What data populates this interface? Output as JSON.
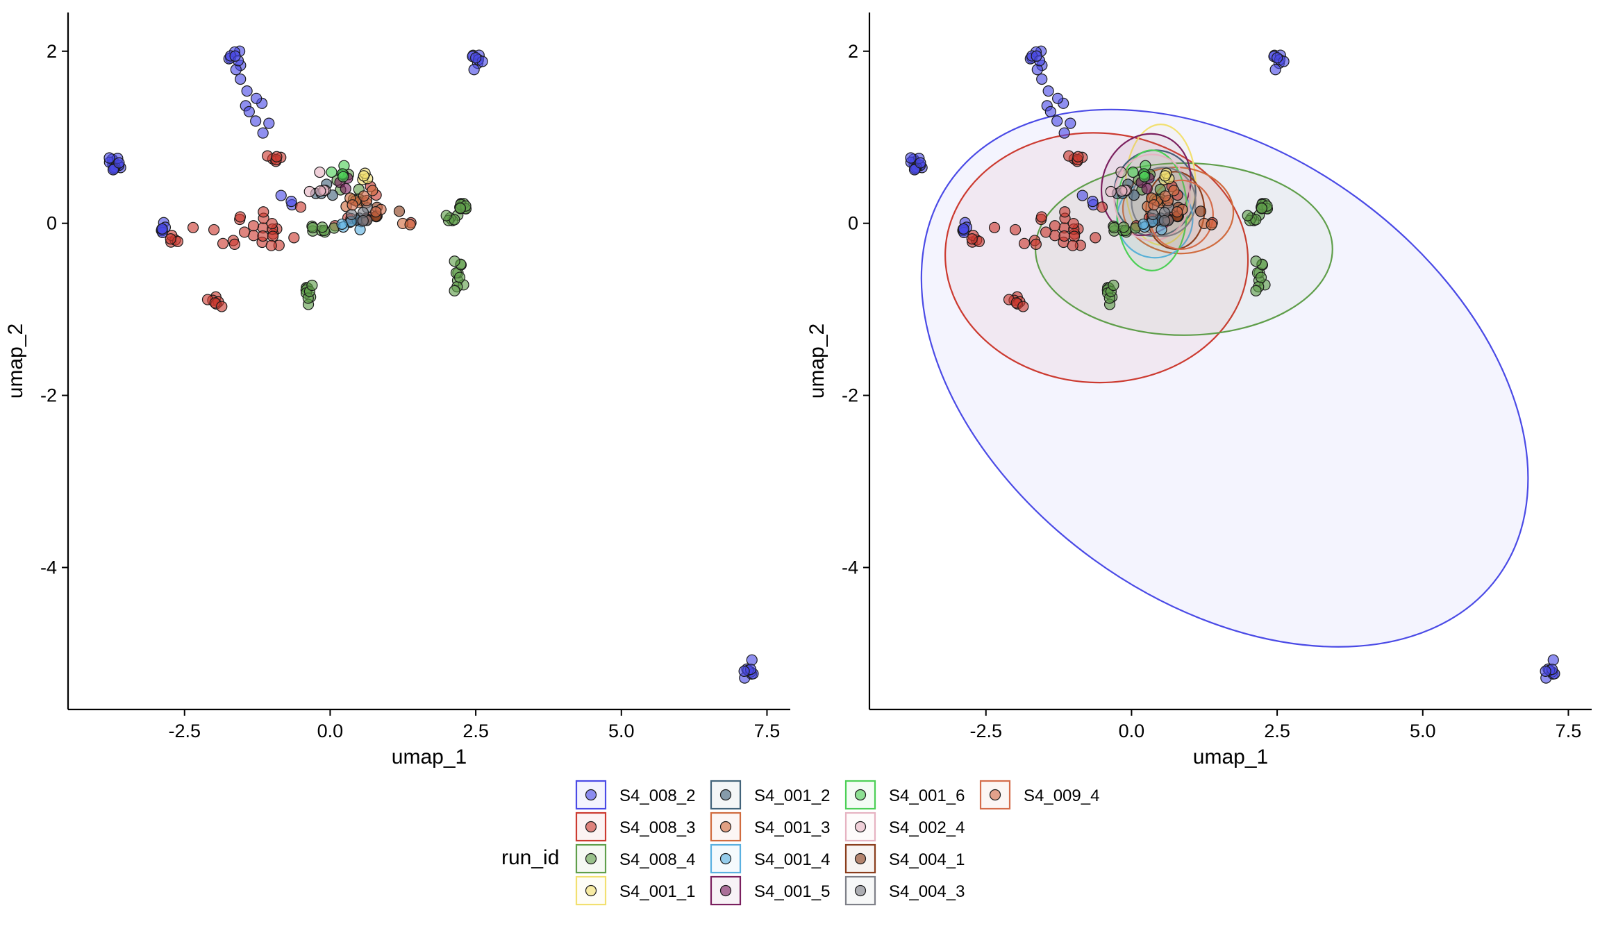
{
  "chart_data": [
    {
      "type": "scatter",
      "xlabel": "umap_1",
      "ylabel": "umap_2",
      "xlim": [
        -4.5,
        7.9
      ],
      "ylim": [
        -5.65,
        2.45
      ],
      "xticks": [
        -2.5,
        0.0,
        2.5,
        5.0,
        7.5
      ],
      "xtick_labels": [
        "-2.5",
        "0.0",
        "2.5",
        "5.0",
        "7.5"
      ],
      "yticks": [
        2,
        0,
        -2,
        -4
      ],
      "ytick_labels": [
        "2",
        "0",
        "-2",
        "-4"
      ],
      "grid": false,
      "ellipses": false
    },
    {
      "type": "scatter",
      "xlabel": "umap_1",
      "ylabel": "umap_2",
      "xlim": [
        -4.5,
        7.9
      ],
      "ylim": [
        -5.65,
        2.45
      ],
      "xticks": [
        -2.5,
        0.0,
        2.5,
        5.0,
        7.5
      ],
      "xtick_labels": [
        "-2.5",
        "0.0",
        "2.5",
        "5.0",
        "7.5"
      ],
      "yticks": [
        2,
        0,
        -2,
        -4
      ],
      "ytick_labels": [
        "2",
        "0",
        "-2",
        "-4"
      ],
      "grid": false,
      "ellipses": true
    }
  ],
  "legend": {
    "title": "run_id",
    "placement": "bottom"
  },
  "series": [
    {
      "name": "S4_008_2",
      "color": "#4a4ae6",
      "clusters": [
        [
          -3.7,
          0.7,
          0.1,
          0.08,
          14
        ],
        [
          -1.6,
          1.9,
          0.1,
          0.15,
          10
        ],
        [
          -1.3,
          1.3,
          0.2,
          0.25,
          8
        ],
        [
          2.5,
          1.9,
          0.1,
          0.1,
          8
        ],
        [
          7.2,
          -5.2,
          0.08,
          0.1,
          9
        ],
        [
          -2.9,
          -0.05,
          0.12,
          0.08,
          7
        ],
        [
          -0.8,
          0.3,
          0.3,
          0.1,
          3
        ]
      ],
      "ellipse": {
        "cx": 1.6,
        "cy": -1.8,
        "rx": 5.8,
        "ry": 2.6,
        "angle": -36
      }
    },
    {
      "name": "S4_008_3",
      "color": "#cc3a30",
      "clusters": [
        [
          -1.0,
          0.75,
          0.15,
          0.05,
          6
        ],
        [
          -2.0,
          -0.9,
          0.1,
          0.07,
          7
        ],
        [
          -1.3,
          -0.1,
          0.8,
          0.2,
          24
        ],
        [
          -2.7,
          -0.2,
          0.08,
          0.07,
          5
        ],
        [
          0.6,
          0.1,
          0.5,
          0.25,
          9
        ]
      ],
      "ellipse": {
        "cx": -0.6,
        "cy": -0.4,
        "rx": 2.6,
        "ry": 1.45,
        "angle": -3
      }
    },
    {
      "name": "S4_008_4",
      "color": "#5f9e4a",
      "clusters": [
        [
          2.3,
          0.2,
          0.12,
          0.05,
          10
        ],
        [
          2.2,
          -0.6,
          0.1,
          0.22,
          10
        ],
        [
          -0.35,
          -0.8,
          0.08,
          0.12,
          9
        ],
        [
          -0.2,
          -0.05,
          0.2,
          0.08,
          8
        ],
        [
          2.1,
          0.05,
          0.1,
          0.12,
          5
        ],
        [
          0.3,
          0.4,
          0.35,
          0.15,
          7
        ]
      ],
      "ellipse": {
        "cx": 0.9,
        "cy": -0.3,
        "rx": 2.55,
        "ry": 1.0,
        "angle": 0
      }
    },
    {
      "name": "S4_001_1",
      "color": "#f2e070",
      "clusters": [
        [
          0.6,
          0.55,
          0.12,
          0.1,
          4
        ]
      ],
      "ellipse": {
        "cx": 0.5,
        "cy": 0.45,
        "rx": 0.6,
        "ry": 0.7,
        "angle": 0
      }
    },
    {
      "name": "S4_001_2",
      "color": "#42637a",
      "clusters": [
        [
          -0.1,
          0.35,
          0.2,
          0.1,
          4
        ],
        [
          0.5,
          0.05,
          0.2,
          0.1,
          3
        ]
      ],
      "ellipse": {
        "cx": 0.4,
        "cy": 0.35,
        "rx": 0.7,
        "ry": 0.5,
        "angle": -10
      }
    },
    {
      "name": "S4_001_3",
      "color": "#d06b3e",
      "clusters": [
        [
          0.4,
          0.3,
          0.25,
          0.15,
          6
        ],
        [
          1.3,
          0.0,
          0.1,
          0.1,
          2
        ]
      ],
      "ellipse": {
        "cx": 0.8,
        "cy": 0.15,
        "rx": 0.95,
        "ry": 0.5,
        "angle": -5
      }
    },
    {
      "name": "S4_001_4",
      "color": "#5ab0e0",
      "clusters": [
        [
          0.5,
          -0.1,
          0.3,
          0.12,
          4
        ]
      ],
      "ellipse": {
        "cx": 0.4,
        "cy": 0.05,
        "rx": 0.65,
        "ry": 0.45,
        "angle": 0
      }
    },
    {
      "name": "S4_001_5",
      "color": "#7a1f5e",
      "clusters": [
        [
          0.2,
          0.45,
          0.12,
          0.08,
          3
        ]
      ],
      "ellipse": {
        "cx": 0.25,
        "cy": 0.45,
        "rx": 0.75,
        "ry": 0.6,
        "angle": -20
      }
    },
    {
      "name": "S4_001_6",
      "color": "#4ccf56",
      "clusters": [
        [
          0.25,
          0.6,
          0.15,
          0.12,
          5
        ]
      ],
      "ellipse": {
        "cx": 0.35,
        "cy": 0.15,
        "rx": 0.6,
        "ry": 0.7,
        "angle": 0
      }
    },
    {
      "name": "S4_002_4",
      "color": "#e6b3c2",
      "clusters": [
        [
          -0.2,
          0.45,
          0.25,
          0.15,
          5
        ]
      ],
      "ellipse": {
        "cx": 0.35,
        "cy": 0.3,
        "rx": 0.65,
        "ry": 0.5,
        "angle": 0
      }
    },
    {
      "name": "S4_004_1",
      "color": "#8a3d1c",
      "clusters": [
        [
          0.8,
          0.15,
          0.25,
          0.15,
          6
        ]
      ],
      "ellipse": {
        "cx": 0.75,
        "cy": 0.15,
        "rx": 0.5,
        "ry": 0.45,
        "angle": 0
      }
    },
    {
      "name": "S4_004_3",
      "color": "#7e8088",
      "clusters": [
        [
          0.6,
          0.1,
          0.3,
          0.15,
          5
        ]
      ],
      "ellipse": {
        "cx": 0.55,
        "cy": 0.25,
        "rx": 0.55,
        "ry": 0.4,
        "angle": 0
      }
    },
    {
      "name": "S4_009_4",
      "color": "#d46c4a",
      "clusters": [
        [
          0.7,
          0.2,
          0.25,
          0.15,
          5
        ]
      ],
      "ellipse": {
        "cx": 0.85,
        "cy": 0.1,
        "rx": 0.55,
        "ry": 0.4,
        "angle": 0
      }
    }
  ]
}
